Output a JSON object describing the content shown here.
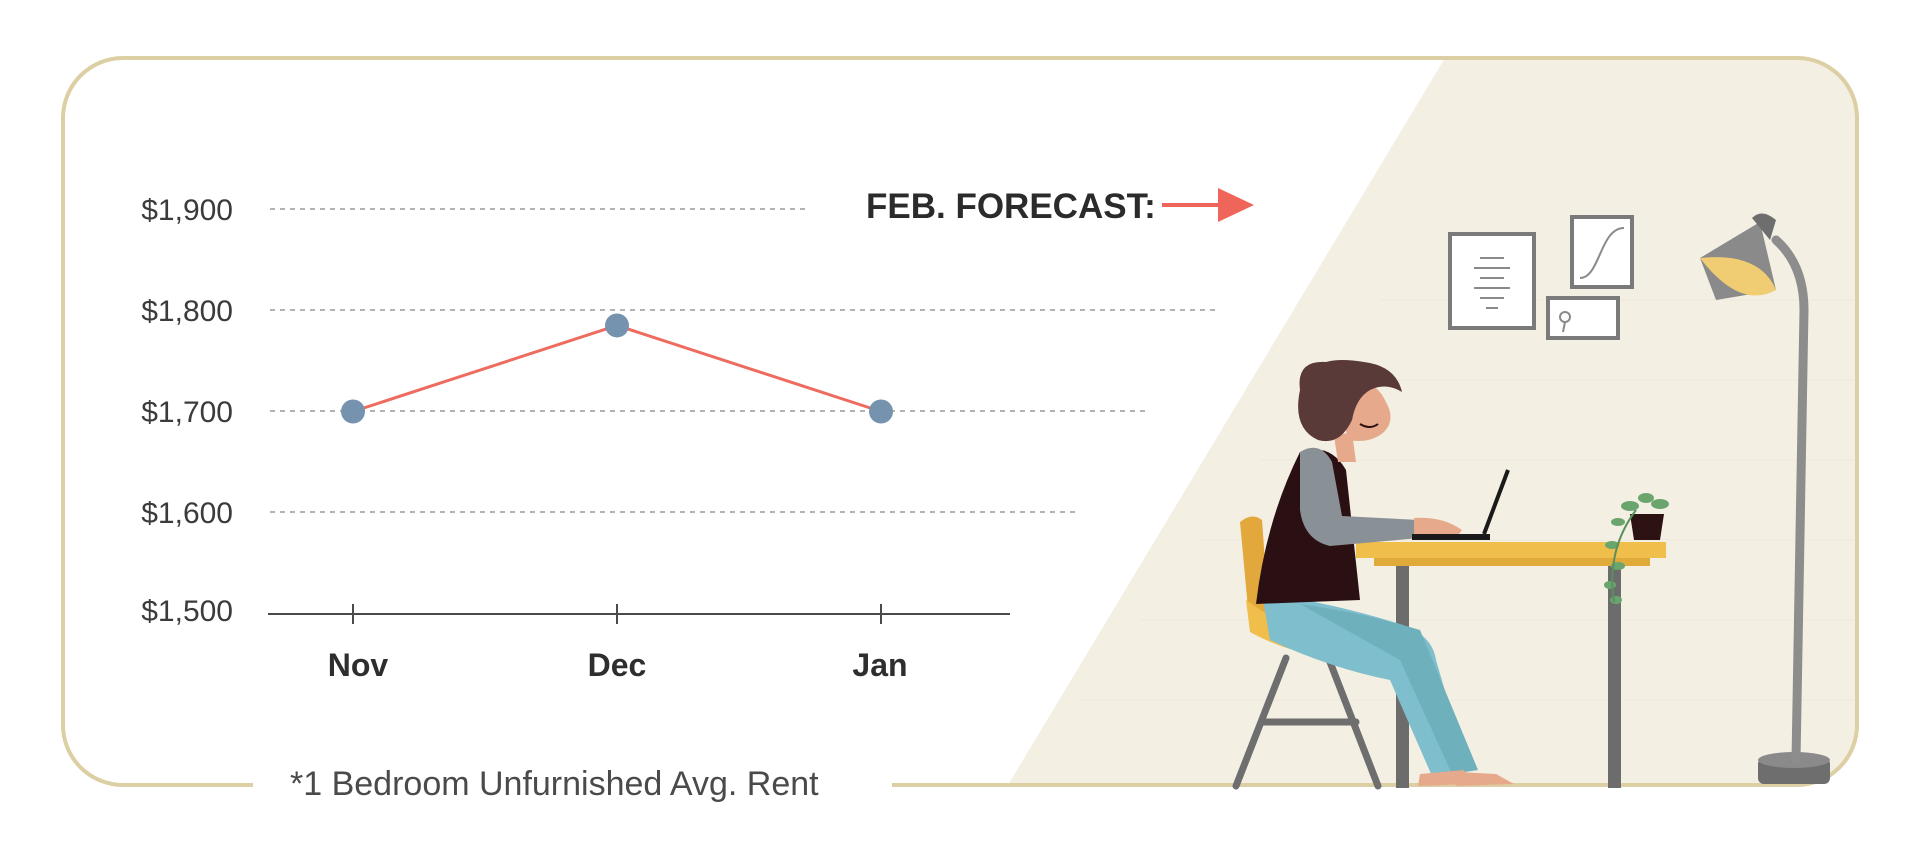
{
  "chart_data": {
    "type": "line",
    "categories": [
      "Nov",
      "Dec",
      "Jan"
    ],
    "series": [
      {
        "values": [
          1700,
          1785,
          1700
        ]
      }
    ],
    "y_ticks": [
      "$1,900",
      "$1,800",
      "$1,700",
      "$1,600",
      "$1,500"
    ],
    "y_tick_values": [
      1900,
      1800,
      1700,
      1600,
      1500
    ],
    "ylim": [
      1500,
      1900
    ],
    "grid": true,
    "annotation": "FEB. FORECAST:",
    "footnote": "*1 Bedroom Unfurnished Avg. Rent"
  },
  "colors": {
    "frame": "#dccfa3",
    "line": "#ee6b5f",
    "marker": "#7592ae",
    "arrow": "#f0655a",
    "panel": "#f4efe3",
    "axis": "#4a4a4a",
    "grid": "#9a9a9a"
  },
  "illustration": {
    "icons": [
      "woman-at-desk-icon",
      "laptop-icon",
      "desk-lamp-icon",
      "plant-icon",
      "picture-frame-icon",
      "chair-icon"
    ]
  }
}
